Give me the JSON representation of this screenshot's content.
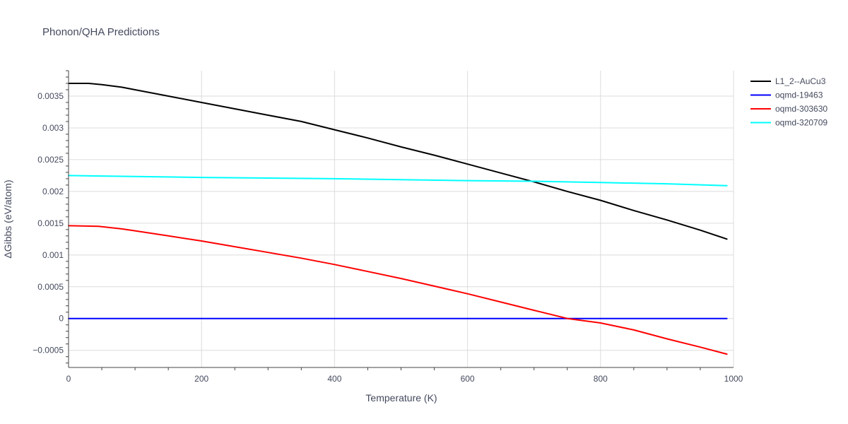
{
  "chart_data": {
    "type": "line",
    "title": "Phonon/QHA Predictions",
    "xlabel": "Temperature (K)",
    "ylabel": "ΔGibbs (eV/atom)",
    "xlim": [
      0,
      1000
    ],
    "ylim": [
      -0.00077,
      0.0039
    ],
    "x_ticks": [
      0,
      200,
      400,
      600,
      800,
      1000
    ],
    "x_tick_labels": [
      "0",
      "200",
      "400",
      "600",
      "800",
      "1000"
    ],
    "y_ticks": [
      -0.0005,
      0,
      0.0005,
      0.001,
      0.0015,
      0.002,
      0.0025,
      0.003,
      0.0035
    ],
    "y_tick_labels": [
      "−0.0005",
      "0",
      "0.0005",
      "0.001",
      "0.0015",
      "0.002",
      "0.0025",
      "0.003",
      "0.0035"
    ],
    "grid": true,
    "legend_position": "top-right",
    "series": [
      {
        "name": "L1_2--AuCu3",
        "color": "#000000",
        "x": [
          0,
          30,
          50,
          80,
          100,
          150,
          200,
          250,
          300,
          350,
          400,
          450,
          500,
          550,
          600,
          650,
          700,
          750,
          800,
          850,
          900,
          950,
          990
        ],
        "y": [
          0.0037,
          0.0037,
          0.00368,
          0.00364,
          0.0036,
          0.0035,
          0.0034,
          0.0033,
          0.0032,
          0.0031,
          0.00297,
          0.00284,
          0.0027,
          0.00257,
          0.00243,
          0.00229,
          0.00215,
          0.002,
          0.00186,
          0.0017,
          0.00155,
          0.00139,
          0.00125
        ]
      },
      {
        "name": "oqmd-19463",
        "color": "#0000ff",
        "x": [
          0,
          990
        ],
        "y": [
          0,
          0
        ]
      },
      {
        "name": "oqmd-303630",
        "color": "#ff0000",
        "x": [
          0,
          45,
          80,
          100,
          150,
          200,
          250,
          300,
          350,
          400,
          450,
          500,
          550,
          600,
          650,
          700,
          750,
          800,
          850,
          900,
          950,
          990
        ],
        "y": [
          0.00146,
          0.00145,
          0.00141,
          0.00138,
          0.0013,
          0.00122,
          0.00113,
          0.00104,
          0.00095,
          0.00085,
          0.00074,
          0.00063,
          0.00051,
          0.00039,
          0.00026,
          0.00013,
          0.0,
          -7e-05,
          -0.00018,
          -0.00032,
          -0.00045,
          -0.00056
        ]
      },
      {
        "name": "oqmd-320709",
        "color": "#00ffff",
        "x": [
          0,
          200,
          400,
          600,
          700,
          800,
          900,
          990
        ],
        "y": [
          0.00225,
          0.00222,
          0.0022,
          0.00217,
          0.00216,
          0.00214,
          0.00212,
          0.00209
        ]
      }
    ]
  }
}
